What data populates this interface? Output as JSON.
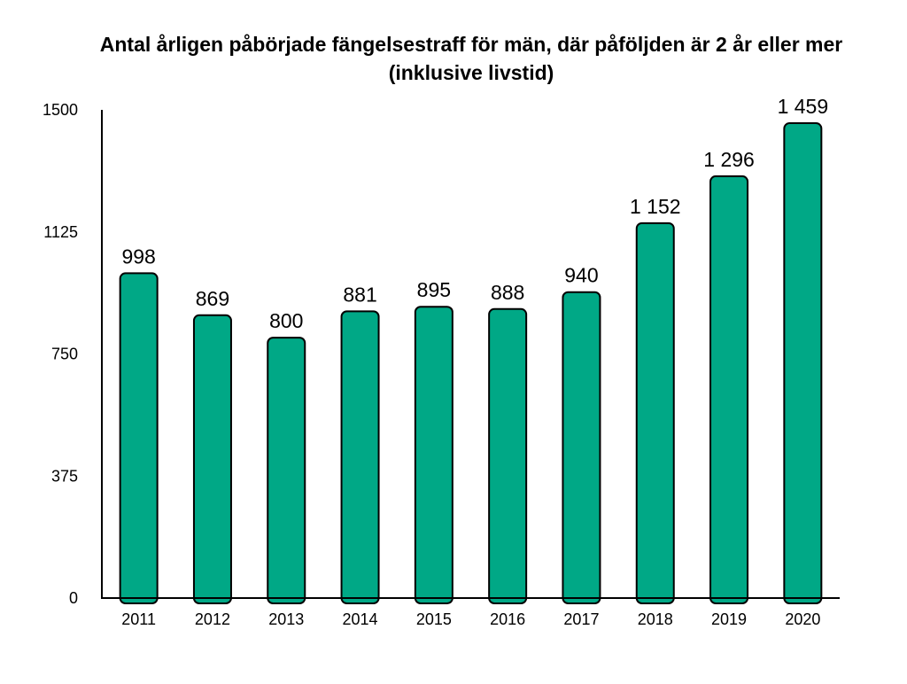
{
  "chart_data": {
    "type": "bar",
    "title": "Antal årligen påbörjade fängelsestraff för män, där påföljden är 2 år eller mer (inklusive livstid)",
    "xlabel": "",
    "ylabel": "",
    "categories": [
      "2011",
      "2012",
      "2013",
      "2014",
      "2015",
      "2016",
      "2017",
      "2018",
      "2019",
      "2020"
    ],
    "values": [
      998,
      869,
      800,
      881,
      895,
      888,
      940,
      1152,
      1296,
      1459
    ],
    "value_labels": [
      "998",
      "869",
      "800",
      "881",
      "895",
      "888",
      "940",
      "1 152",
      "1 296",
      "1 459"
    ],
    "ylim": [
      0,
      1500
    ],
    "yticks": [
      0,
      375,
      750,
      1125,
      1500
    ],
    "ytick_labels": [
      "0",
      "375",
      "750",
      "1125",
      "1500"
    ],
    "grid": false,
    "legend": "none",
    "bar_color": "#00a886",
    "bar_edge_color": "#000000"
  }
}
